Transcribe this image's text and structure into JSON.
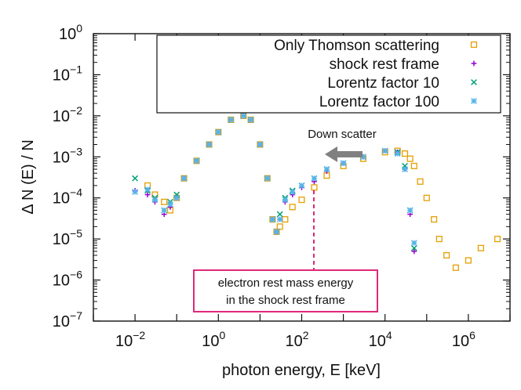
{
  "chart_data": {
    "type": "scatter",
    "xlabel": "photon energy, E [keV]",
    "ylabel": "Δ N (E) / N",
    "x_scale": "log",
    "y_scale": "log",
    "xlim": [
      0.001,
      10000000
    ],
    "ylim": [
      1e-07,
      1
    ],
    "x_ticks": [
      {
        "base": "10",
        "exp": "−2",
        "value": 0.01
      },
      {
        "base": "10",
        "exp": "0",
        "value": 1
      },
      {
        "base": "10",
        "exp": "2",
        "value": 100
      },
      {
        "base": "10",
        "exp": "4",
        "value": 10000
      },
      {
        "base": "10",
        "exp": "6",
        "value": 1000000
      }
    ],
    "y_ticks": [
      {
        "base": "10",
        "exp": "0",
        "value": 1
      },
      {
        "base": "10",
        "exp": "−1",
        "value": 0.1
      },
      {
        "base": "10",
        "exp": "−2",
        "value": 0.01
      },
      {
        "base": "10",
        "exp": "−3",
        "value": 0.001
      },
      {
        "base": "10",
        "exp": "−4",
        "value": 0.0001
      },
      {
        "base": "10",
        "exp": "−5",
        "value": 1e-05
      },
      {
        "base": "10",
        "exp": "−6",
        "value": 1e-06
      },
      {
        "base": "10",
        "exp": "−7",
        "value": 1e-07
      }
    ],
    "series": [
      {
        "name": "Only Thomson scattering",
        "marker": "open-square",
        "color": "#e69f00",
        "x": [
          0.02,
          0.03,
          0.05,
          0.07,
          0.1,
          0.15,
          0.3,
          0.6,
          1,
          2,
          4,
          6,
          10,
          15,
          20,
          25,
          30,
          40,
          60,
          100,
          200,
          400,
          1000,
          3000,
          10000,
          20000,
          30000,
          40000,
          50000,
          70000,
          100000,
          150000,
          200000,
          300000,
          500000,
          1000000,
          2000000,
          5000000
        ],
        "y": [
          0.0002,
          0.00012,
          8e-05,
          5e-05,
          0.0001,
          0.0003,
          0.0008,
          0.002,
          0.004,
          0.008,
          0.01,
          0.008,
          0.002,
          0.0003,
          3e-05,
          1.5e-05,
          2e-05,
          3e-05,
          6e-05,
          9e-05,
          0.00018,
          0.00035,
          0.0006,
          0.0009,
          0.0013,
          0.0014,
          0.0012,
          0.0009,
          0.0006,
          0.00025,
          0.0001,
          3e-05,
          1e-05,
          4e-06,
          2e-06,
          3e-06,
          6e-06,
          1e-05
        ]
      },
      {
        "name": "shock rest frame",
        "marker": "plus",
        "color": "#9400d3",
        "x": [
          0.01,
          0.02,
          0.03,
          0.05,
          0.07,
          0.1,
          0.15,
          0.3,
          0.6,
          1,
          2,
          4,
          6,
          10,
          15,
          20,
          25,
          30,
          40,
          60,
          100,
          200,
          400,
          1000,
          3000,
          10000,
          20000,
          30000,
          40000,
          50000
        ],
        "y": [
          0.00015,
          0.00012,
          8e-05,
          4e-05,
          6e-05,
          0.0001,
          0.0003,
          0.0008,
          0.002,
          0.004,
          0.008,
          0.01,
          0.008,
          0.002,
          0.0003,
          3e-05,
          1.5e-05,
          3e-05,
          8e-05,
          0.00012,
          0.00018,
          0.00025,
          0.00045,
          0.0007,
          0.001,
          0.0014,
          0.0013,
          0.0005,
          4e-05,
          5e-06
        ]
      },
      {
        "name": "Lorentz factor 10",
        "marker": "cross",
        "color": "#009e73",
        "x": [
          0.01,
          0.02,
          0.03,
          0.05,
          0.07,
          0.1,
          0.15,
          0.3,
          0.6,
          1,
          2,
          4,
          6,
          10,
          15,
          20,
          25,
          30,
          40,
          60,
          100,
          200,
          400,
          1000,
          3000,
          10000,
          20000,
          30000,
          40000,
          50000
        ],
        "y": [
          0.0003,
          0.00015,
          0.0001,
          5e-05,
          8e-05,
          0.00012,
          0.0003,
          0.0008,
          0.002,
          0.004,
          0.008,
          0.01,
          0.008,
          0.002,
          0.0003,
          3e-05,
          1.5e-05,
          4e-05,
          0.0001,
          0.00015,
          0.0002,
          0.0003,
          0.0005,
          0.0007,
          0.001,
          0.0014,
          0.0013,
          0.0006,
          5e-05,
          6e-06
        ]
      },
      {
        "name": "Lorentz factor 100",
        "marker": "star",
        "color": "#56b4e9",
        "x": [
          0.01,
          0.02,
          0.03,
          0.05,
          0.07,
          0.1,
          0.15,
          0.3,
          0.6,
          1,
          2,
          4,
          6,
          10,
          15,
          20,
          25,
          30,
          40,
          60,
          100,
          200,
          400,
          1000,
          3000,
          10000,
          20000,
          30000,
          40000,
          50000
        ],
        "y": [
          0.00014,
          0.00016,
          9e-05,
          5e-05,
          7e-05,
          0.0001,
          0.0003,
          0.0008,
          0.002,
          0.004,
          0.008,
          0.01,
          0.008,
          0.002,
          0.0003,
          3e-05,
          1.5e-05,
          3e-05,
          9e-05,
          0.00014,
          0.0002,
          0.0003,
          0.0005,
          0.0007,
          0.001,
          0.0014,
          0.0012,
          0.0005,
          5e-05,
          8e-06
        ]
      }
    ],
    "annotations": [
      {
        "text": "Down scatter",
        "arrow": "left",
        "color": "#808080",
        "x": 3000,
        "y": 0.0012
      },
      {
        "text_lines": [
          "electron rest mass energy",
          "in the shock rest frame"
        ],
        "box_color": "#e0287a",
        "marker_x": 200,
        "marker_y_top": 0.00018
      }
    ],
    "legend_position": "top-right",
    "grid": false
  }
}
